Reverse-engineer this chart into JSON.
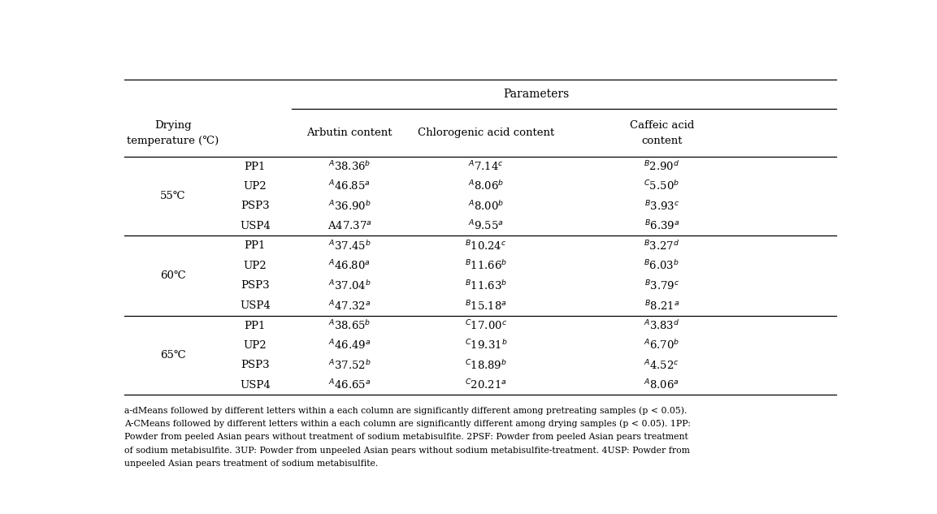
{
  "title": "Parameters",
  "temp_groups": [
    "55℃",
    "60℃",
    "65℃"
  ],
  "row_labels": [
    "PP1",
    "UP2",
    "PSP3",
    "USP4"
  ],
  "data": {
    "55": {
      "PP1": {
        "arbutin": "$^{A}$38.36$^{b}$",
        "chlorogenic": "$^{A}$7.14$^{c}$",
        "caffeic": "$^{B}$2.90$^{d}$"
      },
      "UP2": {
        "arbutin": "$^{A}$46.85$^{a}$",
        "chlorogenic": "$^{A}$8.06$^{b}$",
        "caffeic": "$^{C}$5.50$^{b}$"
      },
      "PSP3": {
        "arbutin": "$^{A}$36.90$^{b}$",
        "chlorogenic": "$^{A}$8.00$^{b}$",
        "caffeic": "$^{B}$3.93$^{c}$"
      },
      "USP4": {
        "arbutin": "A47.37$^{a}$",
        "chlorogenic": "$^{A}$9.55$^{a}$",
        "caffeic": "$^{B}$6.39$^{a}$"
      }
    },
    "60": {
      "PP1": {
        "arbutin": "$^{A}$37.45$^{b}$",
        "chlorogenic": "$^{B}$10.24$^{c}$",
        "caffeic": "$^{B}$3.27$^{d}$"
      },
      "UP2": {
        "arbutin": "$^{A}$46.80$^{a}$",
        "chlorogenic": "$^{B}$11.66$^{b}$",
        "caffeic": "$^{B}$6.03$^{b}$"
      },
      "PSP3": {
        "arbutin": "$^{A}$37.04$^{b}$",
        "chlorogenic": "$^{B}$11.63$^{b}$",
        "caffeic": "$^{B}$3.79$^{c}$"
      },
      "USP4": {
        "arbutin": "$^{A}$47.32$^{a}$",
        "chlorogenic": "$^{B}$15.18$^{a}$",
        "caffeic": "$^{B}$8.21$^{a}$"
      }
    },
    "65": {
      "PP1": {
        "arbutin": "$^{A}$38.65$^{b}$",
        "chlorogenic": "$^{C}$17.00$^{c}$",
        "caffeic": "$^{A}$3.83$^{d}$"
      },
      "UP2": {
        "arbutin": "$^{A}$46.49$^{a}$",
        "chlorogenic": "$^{C}$19.31$^{b}$",
        "caffeic": "$^{A}$6.70$^{b}$"
      },
      "PSP3": {
        "arbutin": "$^{A}$37.52$^{b}$",
        "chlorogenic": "$^{C}$18.89$^{b}$",
        "caffeic": "$^{A}$4.52$^{c}$"
      },
      "USP4": {
        "arbutin": "$^{A}$46.65$^{a}$",
        "chlorogenic": "$^{C}$20.21$^{a}$",
        "caffeic": "$^{A}$8.06$^{a}$"
      }
    }
  },
  "footnote_lines": [
    "a-dMeans followed by different letters within a each column are significantly different among pretreating samples (p < 0.05).",
    "A-CMeans followed by different letters within a each column are significantly different among drying samples (p < 0.05). 1PP:",
    "Powder from peeled Asian pears without treatment of sodium metabisulfite. 2PSF: Powder from peeled Asian pears treatment",
    "of sodium metabisulfite. 3UP: Powder from unpeeled Asian pears without sodium metabisulfite-treatment. 4USP: Powder from",
    "unpeeled Asian pears treatment of sodium metabisulfite."
  ],
  "bg_color": "white",
  "font_size": 9.5,
  "header_font_size": 10,
  "footnote_font_size": 7.8
}
